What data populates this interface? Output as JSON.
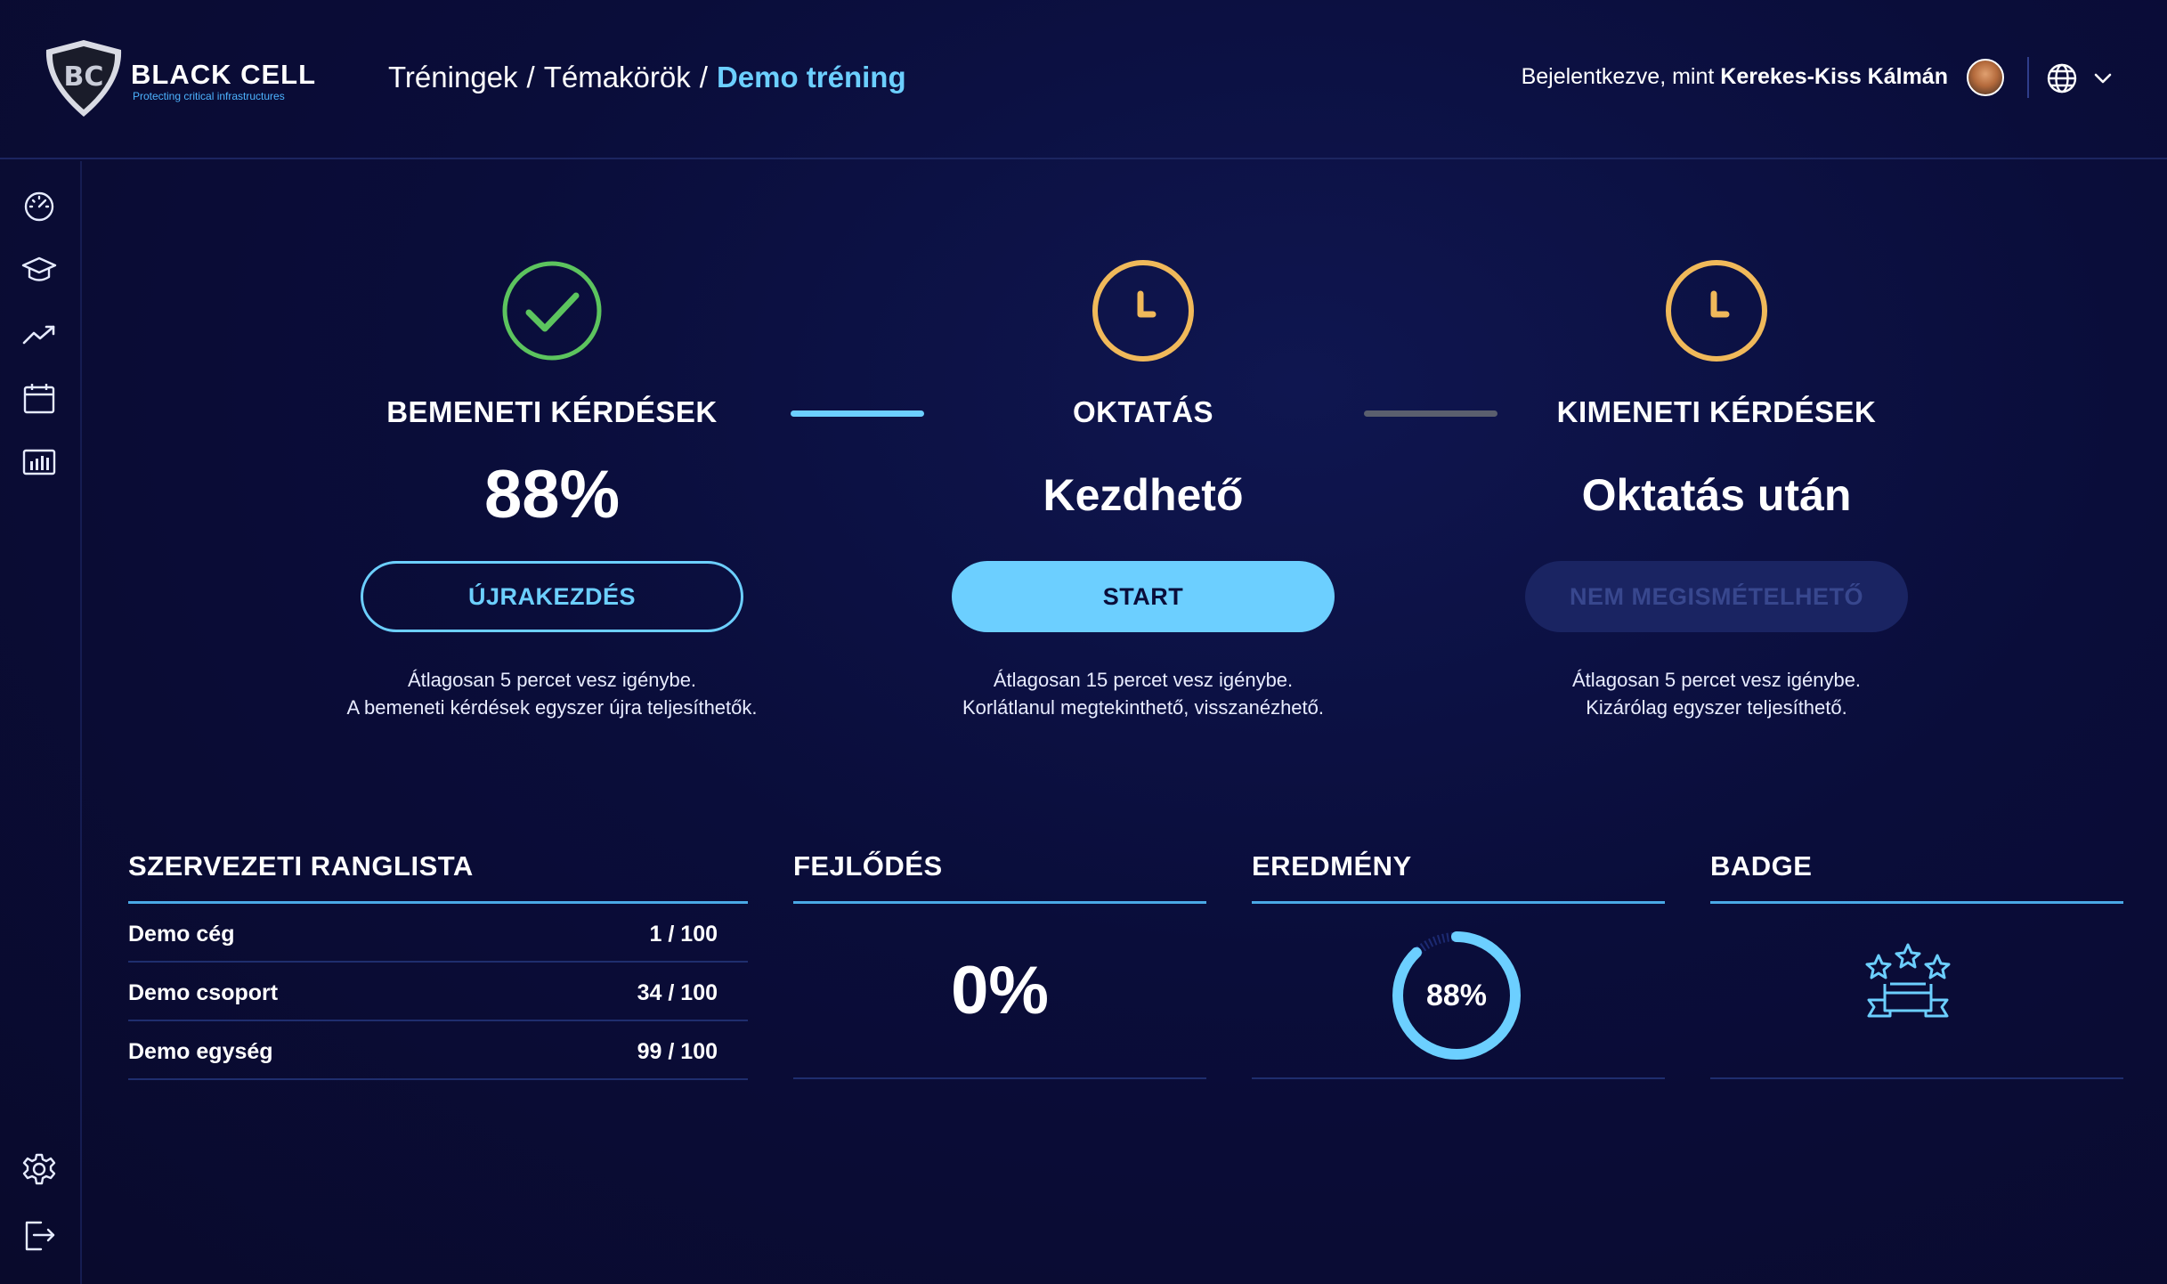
{
  "header": {
    "logo": {
      "name": "BLACK CELL",
      "tagline": "Protecting critical infrastructures",
      "mark": "BC"
    },
    "breadcrumb": [
      "Tréningek",
      "Témakörök",
      "Demo tréning"
    ],
    "breadcrumb_separator": "/",
    "user": {
      "prefix": "Bejelentkezve, mint",
      "name": "Kerekes-Kiss Kálmán"
    },
    "language_icon": "globe-icon"
  },
  "sidebar": {
    "items": [
      {
        "icon": "dashboard-gauge-icon"
      },
      {
        "icon": "graduation-cap-icon"
      },
      {
        "icon": "trend-up-icon"
      },
      {
        "icon": "calendar-icon"
      },
      {
        "icon": "bar-chart-icon"
      },
      {
        "icon": "settings-gear-icon"
      },
      {
        "icon": "logout-icon"
      }
    ]
  },
  "steps": [
    {
      "status": "done",
      "icon": "check-circle-icon",
      "title": "BEMENETI KÉRDÉSEK",
      "value": "88%",
      "button": "ÚJRAKEZDÉS",
      "desc_line1": "Átlagosan 5 percet vesz igénybe.",
      "desc_line2": "A bemeneti kérdések egyszer újra teljesíthetők."
    },
    {
      "status": "pending",
      "icon": "clock-icon",
      "title": "OKTATÁS",
      "value": "Kezdhető",
      "button": "START",
      "desc_line1": "Átlagosan 15 percet vesz igénybe.",
      "desc_line2": "Korlátlanul megtekinthető, visszanézhető."
    },
    {
      "status": "locked",
      "icon": "clock-icon",
      "title": "KIMENETI KÉRDÉSEK",
      "value": "Oktatás után",
      "button": "NEM MEGISMÉTELHETŐ",
      "desc_line1": "Átlagosan 5 percet vesz igénybe.",
      "desc_line2": "Kizárólag egyszer teljesíthető."
    }
  ],
  "connectors": [
    {
      "state": "active",
      "color": "#6ccfff"
    },
    {
      "state": "inactive",
      "color": "#5a5f6e"
    }
  ],
  "ranking": {
    "title": "SZERVEZETI RANGLISTA",
    "rows": [
      {
        "label": "Demo cég",
        "value": "1 / 100"
      },
      {
        "label": "Demo csoport",
        "value": "34 / 100"
      },
      {
        "label": "Demo egység",
        "value": "99 / 100"
      }
    ]
  },
  "progress": {
    "title": "FEJLŐDÉS",
    "value": "0%"
  },
  "result": {
    "title": "EREDMÉNY",
    "value": "88%",
    "fraction": 0.88
  },
  "badge": {
    "title": "BADGE",
    "icon": "badge-stars-icon"
  },
  "colors": {
    "accent": "#6ccfff",
    "success": "#5cc45e",
    "pending": "#f0b95a",
    "background": "#0a0d3a"
  }
}
